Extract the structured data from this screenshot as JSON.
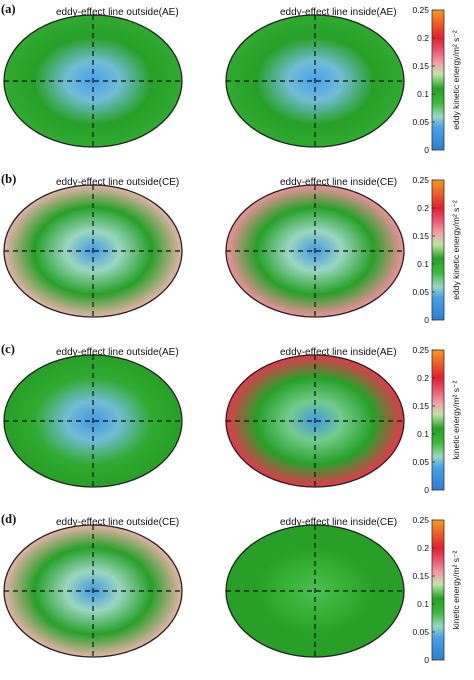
{
  "panels": [
    {
      "label": "(a)",
      "title_left": "eddy-effect line outside(AE)",
      "title_right": "eddy-effect line inside(AE)",
      "colorbar_label": "eddy kinetic energy/m² s⁻²",
      "maps": [
        {
          "level": 0.04,
          "inner": 0.05,
          "ring": 0.11,
          "edge": 0.1
        },
        {
          "level": 0.04,
          "inner": 0.05,
          "ring": 0.11,
          "edge": 0.1
        }
      ]
    },
    {
      "label": "(b)",
      "title_left": "eddy-effect line outside(CE)",
      "title_right": "eddy-effect line inside(CE)",
      "colorbar_label": "eddy kinetic energy/m² s⁻²",
      "maps": [
        {
          "level": 0.03,
          "inner": 0.06,
          "ring": 0.11,
          "edge": 0.15
        },
        {
          "level": 0.03,
          "inner": 0.06,
          "ring": 0.11,
          "edge": 0.16
        }
      ]
    },
    {
      "label": "(c)",
      "title_left": "eddy-effect line outside(AE)",
      "title_right": "eddy-effect line inside(AE)",
      "colorbar_label": "kinetic energy/m² s⁻²",
      "maps": [
        {
          "level": 0.03,
          "inner": 0.05,
          "ring": 0.1,
          "edge": 0.11
        },
        {
          "level": 0.03,
          "inner": 0.07,
          "ring": 0.11,
          "edge": 0.19
        }
      ]
    },
    {
      "label": "(d)",
      "title_left": "eddy-effect line outside(CE)",
      "title_right": "eddy-effect line inside(CE)",
      "colorbar_label": "kinetic energy/m² s⁻²",
      "maps": [
        {
          "level": 0.03,
          "inner": 0.06,
          "ring": 0.11,
          "edge": 0.15
        },
        {
          "level": 0.08,
          "inner": 0.09,
          "ring": 0.11,
          "edge": 0.11
        }
      ]
    }
  ],
  "colorbar": {
    "ticks": [
      "0",
      "0.05",
      "0.1",
      "0.15",
      "0.2",
      "0.25"
    ],
    "tick_values": [
      0,
      0.05,
      0.1,
      0.15,
      0.2,
      0.25
    ],
    "range": [
      0,
      0.25
    ],
    "colors": {
      "0": "#2c7fd0",
      "0.04": "#4aa0e8",
      "0.06": "#9ad7c0",
      "0.085": "#3cb83c",
      "0.11": "#28a028",
      "0.135": "#bfe6a8",
      "0.155": "#f2a0a8",
      "0.18": "#e8506a",
      "0.2": "#e02030",
      "0.25": "#f59a1f"
    }
  },
  "chart_data": {
    "type": "heatmap",
    "x": [
      "eddy-effect line outside",
      "eddy-effect line inside"
    ],
    "series": [
      {
        "name": "(a)",
        "values": [
          [
            0.04,
            0.05,
            0.11,
            0.1
          ],
          [
            0.04,
            0.05,
            0.11,
            0.1
          ]
        ]
      },
      {
        "name": "(b)",
        "values": [
          [
            0.03,
            0.06,
            0.11,
            0.15
          ],
          [
            0.03,
            0.06,
            0.11,
            0.16
          ]
        ]
      },
      {
        "name": "(c)",
        "values": [
          [
            0.03,
            0.05,
            0.1,
            0.11
          ],
          [
            0.03,
            0.07,
            0.11,
            0.19
          ]
        ]
      },
      {
        "name": "(d)",
        "values": [
          [
            0.03,
            0.06,
            0.11,
            0.15
          ],
          [
            0.08,
            0.09,
            0.11,
            0.11
          ]
        ]
      }
    ],
    "ylim": [
      0,
      0.25
    ],
    "grid": false
  }
}
